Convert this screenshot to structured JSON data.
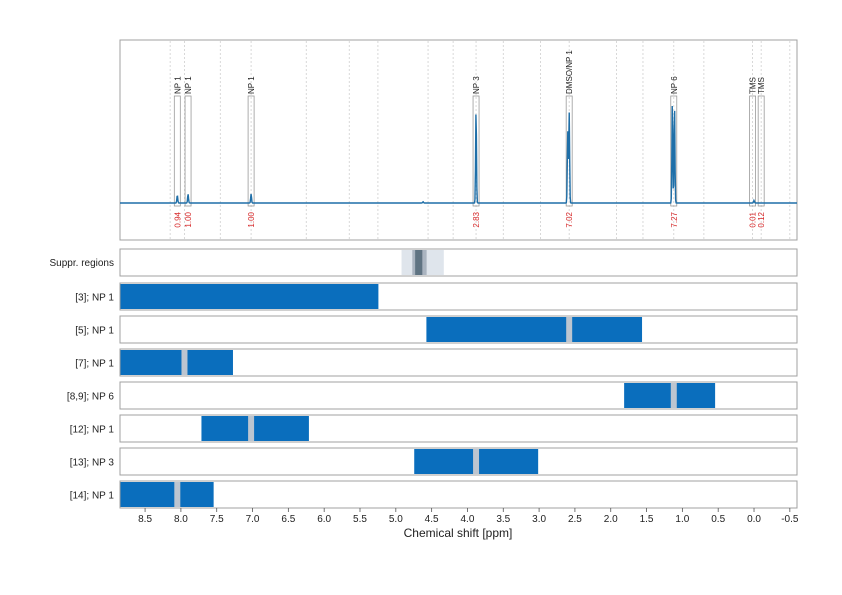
{
  "colors": {
    "spectrum": "#1f6fa8",
    "bar": "#0a6ebd",
    "gap": "#bcc5d0",
    "integral_text": "#d62728",
    "suppr_light": "#dfe5ec",
    "suppr_mid": "#aab4c0",
    "suppr_dark": "#5f7382",
    "frame": "#a0a0a0",
    "grid": "#cfcfcf"
  },
  "chart_data": {
    "type": "nmr-spectrum-with-region-bars",
    "xlabel": "Chemical shift [ppm]",
    "xlim": [
      8.85,
      -0.6
    ],
    "x_ticks": [
      8.5,
      8.0,
      7.5,
      7.0,
      6.5,
      6.0,
      5.5,
      5.0,
      4.5,
      4.0,
      3.5,
      3.0,
      2.5,
      2.0,
      1.5,
      1.0,
      0.5,
      0.0,
      -0.5
    ],
    "x_tick_labels": [
      "8.5",
      "8.0",
      "7.5",
      "7.0",
      "6.5",
      "6.0",
      "5.5",
      "5.0",
      "4.5",
      "4.0",
      "3.5",
      "3.0",
      "2.5",
      "2.0",
      "1.5",
      "1.0",
      "0.5",
      "0.0",
      "-0.5"
    ],
    "spectrum": {
      "peaks": [
        {
          "ppm": 8.05,
          "height": 0.06
        },
        {
          "ppm": 7.9,
          "height": 0.07
        },
        {
          "ppm": 7.02,
          "height": 0.07
        },
        {
          "ppm": 4.62,
          "height": 0.01
        },
        {
          "ppm": 3.88,
          "height": 0.72
        },
        {
          "ppm": 2.6,
          "height": 0.55
        },
        {
          "ppm": 2.58,
          "height": 0.7
        },
        {
          "ppm": 1.14,
          "height": 0.77
        },
        {
          "ppm": 1.11,
          "height": 0.76
        },
        {
          "ppm": 0.0,
          "height": 0.02
        }
      ],
      "annotations": [
        {
          "label": "NP 1",
          "ppm": 8.05,
          "integral": "0.94"
        },
        {
          "label": "NP 1",
          "ppm": 7.9,
          "integral": "1.00"
        },
        {
          "label": "NP 1",
          "ppm": 7.02,
          "integral": "1.00"
        },
        {
          "label": "NP 3",
          "ppm": 3.88,
          "integral": "2.83"
        },
        {
          "label": "DMSO/NP 1",
          "ppm": 2.58,
          "integral": "7.02"
        },
        {
          "label": "NP 6",
          "ppm": 1.12,
          "integral": "7.27"
        },
        {
          "label": "TMS",
          "ppm": 0.02,
          "integral": "0.01"
        },
        {
          "label": "TMS",
          "ppm": -0.1,
          "integral": "0.12"
        }
      ],
      "dashed_lines_ppm": [
        8.15,
        7.95,
        7.45,
        7.02,
        6.25,
        5.65,
        5.25,
        4.55,
        4.2,
        3.88,
        3.5,
        2.98,
        2.58,
        1.92,
        1.55,
        1.12,
        0.7,
        0.02,
        -0.1,
        -0.5
      ]
    },
    "suppr_regions": {
      "label": "Suppr. regions",
      "light": [
        4.92,
        4.33
      ],
      "mid": [
        4.77,
        4.57
      ],
      "dark": [
        4.73,
        4.63
      ]
    },
    "rows": [
      {
        "label": "[3]; NP 1",
        "start": 8.85,
        "end": 5.25,
        "gaps": []
      },
      {
        "label": "[5]; NP 1",
        "start": 4.58,
        "end": 1.57,
        "gaps": [
          2.58
        ]
      },
      {
        "label": "[7]; NP 1",
        "start": 8.85,
        "end": 7.28,
        "gaps": [
          7.95
        ]
      },
      {
        "label": "[8,9]; NP 6",
        "start": 1.82,
        "end": 0.55,
        "gaps": [
          1.12
        ]
      },
      {
        "label": "[12]; NP 1",
        "start": 7.72,
        "end": 6.22,
        "gaps": [
          7.02
        ]
      },
      {
        "label": "[13]; NP 3",
        "start": 4.75,
        "end": 3.02,
        "gaps": [
          3.88
        ]
      },
      {
        "label": "[14]; NP 1",
        "start": 8.85,
        "end": 7.55,
        "gaps": [
          8.05
        ]
      }
    ]
  }
}
